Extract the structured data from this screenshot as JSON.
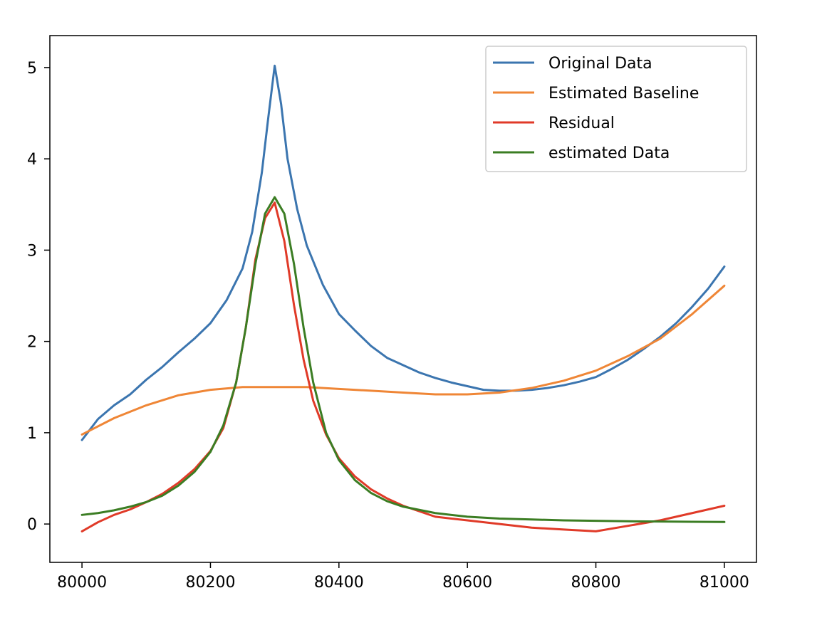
{
  "chart_data": {
    "type": "line",
    "title": "",
    "xlabel": "",
    "ylabel": "",
    "xlim": [
      79950,
      81050
    ],
    "ylim": [
      -0.42,
      5.35
    ],
    "grid": false,
    "legend_placement": "top-right",
    "x_ticks": [
      80000,
      80200,
      80400,
      80600,
      80800,
      81000
    ],
    "x_tick_labels": [
      "80000",
      "80200",
      "80400",
      "80600",
      "80800",
      "81000"
    ],
    "y_ticks": [
      0,
      1,
      2,
      3,
      4,
      5
    ],
    "y_tick_labels": [
      "0",
      "1",
      "2",
      "3",
      "4",
      "5"
    ],
    "series": [
      {
        "name": "Original Data",
        "color": "#3b75af",
        "x": [
          80000,
          80025,
          80050,
          80075,
          80100,
          80125,
          80150,
          80175,
          80200,
          80225,
          80250,
          80265,
          80280,
          80290,
          80300,
          80310,
          80320,
          80335,
          80350,
          80375,
          80400,
          80425,
          80450,
          80475,
          80500,
          80525,
          80550,
          80575,
          80600,
          80625,
          80650,
          80675,
          80700,
          80725,
          80750,
          80775,
          80800,
          80825,
          80850,
          80875,
          80900,
          80925,
          80950,
          80975,
          81000
        ],
        "values": [
          0.92,
          1.15,
          1.3,
          1.42,
          1.58,
          1.72,
          1.88,
          2.03,
          2.2,
          2.45,
          2.8,
          3.2,
          3.85,
          4.45,
          5.02,
          4.6,
          4.0,
          3.45,
          3.05,
          2.62,
          2.3,
          2.12,
          1.95,
          1.82,
          1.74,
          1.66,
          1.6,
          1.55,
          1.51,
          1.47,
          1.46,
          1.46,
          1.47,
          1.49,
          1.52,
          1.56,
          1.61,
          1.7,
          1.8,
          1.92,
          2.05,
          2.2,
          2.38,
          2.58,
          2.82
        ]
      },
      {
        "name": "Estimated Baseline",
        "color": "#ef8636",
        "x": [
          80000,
          80050,
          80100,
          80150,
          80200,
          80250,
          80300,
          80350,
          80400,
          80450,
          80500,
          80550,
          80600,
          80650,
          80700,
          80750,
          80800,
          80850,
          80900,
          80950,
          81000
        ],
        "values": [
          0.98,
          1.16,
          1.3,
          1.41,
          1.47,
          1.5,
          1.5,
          1.5,
          1.48,
          1.46,
          1.44,
          1.42,
          1.42,
          1.44,
          1.49,
          1.57,
          1.68,
          1.84,
          2.03,
          2.3,
          2.61
        ]
      },
      {
        "name": "Residual",
        "color": "#e03a28",
        "x": [
          80000,
          80025,
          80050,
          80075,
          80100,
          80125,
          80150,
          80175,
          80200,
          80220,
          80240,
          80255,
          80270,
          80285,
          80300,
          80315,
          80330,
          80345,
          80360,
          80380,
          80400,
          80425,
          80450,
          80475,
          80500,
          80550,
          80600,
          80650,
          80700,
          80750,
          80800,
          80850,
          80900,
          80950,
          81000
        ],
        "values": [
          -0.08,
          0.02,
          0.1,
          0.16,
          0.24,
          0.33,
          0.45,
          0.6,
          0.8,
          1.05,
          1.55,
          2.15,
          2.9,
          3.35,
          3.52,
          3.1,
          2.4,
          1.8,
          1.35,
          0.98,
          0.72,
          0.52,
          0.38,
          0.28,
          0.2,
          0.08,
          0.04,
          0.0,
          -0.04,
          -0.06,
          -0.08,
          -0.02,
          0.04,
          0.12,
          0.2
        ]
      },
      {
        "name": "estimated Data",
        "color": "#3b7d23",
        "x": [
          80000,
          80025,
          80050,
          80075,
          80100,
          80125,
          80150,
          80175,
          80200,
          80220,
          80240,
          80255,
          80270,
          80285,
          80300,
          80315,
          80330,
          80345,
          80360,
          80380,
          80400,
          80425,
          80450,
          80475,
          80500,
          80550,
          80600,
          80650,
          80700,
          80750,
          80800,
          80850,
          80900,
          80950,
          81000
        ],
        "values": [
          0.1,
          0.12,
          0.15,
          0.19,
          0.24,
          0.31,
          0.42,
          0.57,
          0.79,
          1.08,
          1.55,
          2.15,
          2.85,
          3.4,
          3.58,
          3.4,
          2.85,
          2.15,
          1.55,
          1.0,
          0.7,
          0.48,
          0.34,
          0.25,
          0.19,
          0.12,
          0.08,
          0.06,
          0.05,
          0.04,
          0.035,
          0.03,
          0.027,
          0.024,
          0.022
        ]
      }
    ]
  }
}
